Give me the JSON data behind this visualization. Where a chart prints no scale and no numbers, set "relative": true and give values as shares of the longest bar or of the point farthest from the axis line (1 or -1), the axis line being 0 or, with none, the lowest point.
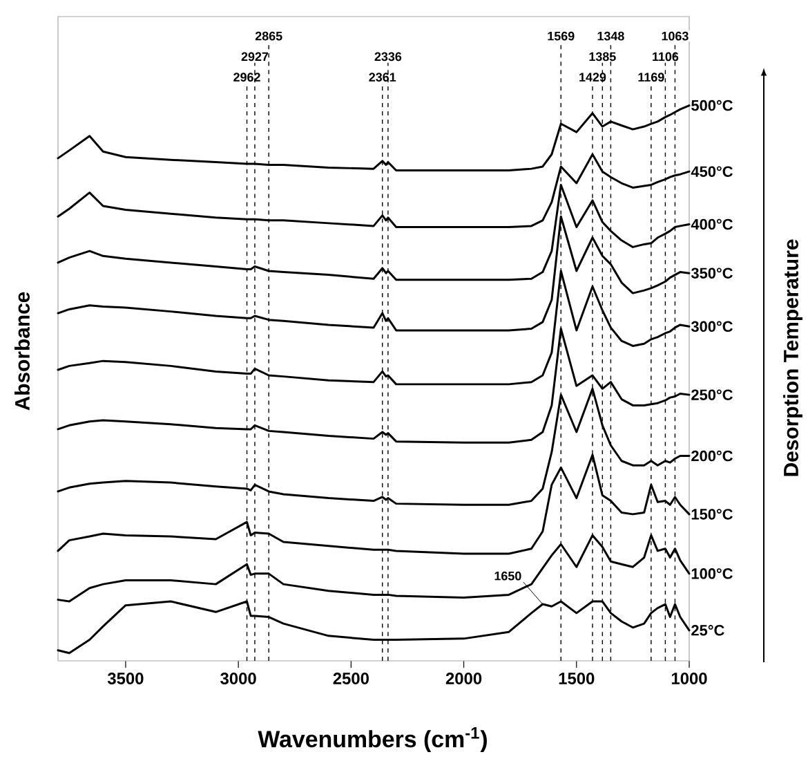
{
  "chart_data": {
    "type": "line",
    "relative": true,
    "xlabel": "Wavenumbers (cm$^{-1}$)",
    "ylabel": "Absorbance",
    "y2label": "Desorption Temperature",
    "xlim": [
      3800,
      1000
    ],
    "xticks": [
      3500,
      3000,
      2500,
      2000,
      1500,
      1000
    ],
    "x": [
      3800,
      3750,
      3660,
      3600,
      3500,
      3300,
      3100,
      2962,
      2945,
      2927,
      2865,
      2800,
      2600,
      2400,
      2361,
      2345,
      2336,
      2300,
      2000,
      1800,
      1700,
      1650,
      1610,
      1569,
      1500,
      1429,
      1385,
      1348,
      1300,
      1250,
      1200,
      1169,
      1140,
      1106,
      1085,
      1063,
      1040,
      1000
    ],
    "series": [
      {
        "name": "500°C",
        "color": "#000000",
        "values": [
          0.905,
          0.919,
          0.945,
          0.917,
          0.907,
          0.902,
          0.898,
          0.895,
          0.895,
          0.895,
          0.893,
          0.893,
          0.888,
          0.886,
          0.9,
          0.893,
          0.898,
          0.883,
          0.883,
          0.883,
          0.886,
          0.89,
          0.912,
          0.967,
          0.952,
          0.986,
          0.962,
          0.971,
          0.964,
          0.957,
          0.962,
          0.967,
          0.971,
          0.979,
          0.983,
          0.988,
          0.993,
          1
        ]
      },
      {
        "name": "450°C",
        "color": "#000000",
        "values": [
          0.8,
          0.814,
          0.843,
          0.819,
          0.812,
          0.805,
          0.798,
          0.795,
          0.795,
          0.795,
          0.793,
          0.793,
          0.788,
          0.783,
          0.802,
          0.793,
          0.798,
          0.781,
          0.781,
          0.781,
          0.783,
          0.793,
          0.826,
          0.89,
          0.86,
          0.912,
          0.881,
          0.871,
          0.86,
          0.852,
          0.855,
          0.857,
          0.862,
          0.867,
          0.871,
          0.874,
          0.876,
          0.881
        ]
      },
      {
        "name": "400°C",
        "color": "#000000",
        "values": [
          0.717,
          0.726,
          0.738,
          0.729,
          0.724,
          0.717,
          0.71,
          0.705,
          0.705,
          0.71,
          0.702,
          0.7,
          0.695,
          0.688,
          0.707,
          0.698,
          0.702,
          0.686,
          0.686,
          0.686,
          0.688,
          0.7,
          0.738,
          0.857,
          0.781,
          0.829,
          0.79,
          0.774,
          0.757,
          0.745,
          0.75,
          0.752,
          0.762,
          0.769,
          0.774,
          0.781,
          0.783,
          0.786
        ]
      },
      {
        "name": "350°C",
        "color": "#000000",
        "values": [
          0.626,
          0.633,
          0.64,
          0.638,
          0.636,
          0.629,
          0.621,
          0.617,
          0.617,
          0.621,
          0.614,
          0.612,
          0.605,
          0.6,
          0.626,
          0.612,
          0.617,
          0.595,
          0.595,
          0.595,
          0.598,
          0.61,
          0.65,
          0.8,
          0.702,
          0.762,
          0.729,
          0.714,
          0.681,
          0.662,
          0.667,
          0.671,
          0.676,
          0.683,
          0.69,
          0.695,
          0.7,
          0.698
        ]
      },
      {
        "name": "300°C",
        "color": "#000000",
        "values": [
          0.524,
          0.531,
          0.536,
          0.54,
          0.538,
          0.531,
          0.521,
          0.517,
          0.517,
          0.526,
          0.514,
          0.512,
          0.505,
          0.502,
          0.521,
          0.512,
          0.514,
          0.498,
          0.498,
          0.498,
          0.502,
          0.514,
          0.555,
          0.702,
          0.595,
          0.674,
          0.631,
          0.6,
          0.576,
          0.567,
          0.571,
          0.579,
          0.583,
          0.59,
          0.593,
          0.6,
          0.605,
          0.602
        ]
      },
      {
        "name": "250°C",
        "color": "#000000",
        "values": [
          0.417,
          0.424,
          0.431,
          0.433,
          0.431,
          0.426,
          0.419,
          0.417,
          0.417,
          0.424,
          0.414,
          0.412,
          0.405,
          0.4,
          0.412,
          0.407,
          0.41,
          0.395,
          0.393,
          0.393,
          0.398,
          0.412,
          0.46,
          0.598,
          0.495,
          0.514,
          0.49,
          0.502,
          0.471,
          0.46,
          0.46,
          0.462,
          0.464,
          0.469,
          0.474,
          0.476,
          0.481,
          0.479
        ]
      },
      {
        "name": "200°C",
        "color": "#000000",
        "values": [
          0.305,
          0.312,
          0.319,
          0.321,
          0.324,
          0.321,
          0.314,
          0.31,
          0.307,
          0.317,
          0.305,
          0.3,
          0.293,
          0.288,
          0.295,
          0.29,
          0.293,
          0.283,
          0.281,
          0.281,
          0.288,
          0.31,
          0.376,
          0.479,
          0.412,
          0.49,
          0.424,
          0.388,
          0.36,
          0.352,
          0.352,
          0.36,
          0.352,
          0.36,
          0.357,
          0.364,
          0.369,
          0.369
        ]
      },
      {
        "name": "150°C",
        "color": "#000000",
        "values": [
          0.198,
          0.217,
          0.224,
          0.229,
          0.226,
          0.224,
          0.219,
          0.25,
          0.226,
          0.231,
          0.229,
          0.214,
          0.207,
          0.2,
          0.2,
          0.2,
          0.2,
          0.198,
          0.193,
          0.193,
          0.202,
          0.233,
          0.317,
          0.348,
          0.293,
          0.371,
          0.298,
          0.288,
          0.267,
          0.264,
          0.267,
          0.317,
          0.286,
          0.288,
          0.281,
          0.295,
          0.281,
          0.264
        ]
      },
      {
        "name": "100°C",
        "color": "#000000",
        "values": [
          0.11,
          0.107,
          0.131,
          0.138,
          0.145,
          0.145,
          0.138,
          0.174,
          0.155,
          0.157,
          0.157,
          0.138,
          0.126,
          0.119,
          0.119,
          0.119,
          0.119,
          0.117,
          0.114,
          0.119,
          0.138,
          0.167,
          0.19,
          0.21,
          0.169,
          0.226,
          0.205,
          0.179,
          0.174,
          0.169,
          0.186,
          0.226,
          0.198,
          0.202,
          0.186,
          0.202,
          0.181,
          0.157
        ]
      },
      {
        "name": "25°C",
        "color": "#000000",
        "values": [
          0.019,
          0.014,
          0.038,
          0.062,
          0.1,
          0.107,
          0.088,
          0.107,
          0.081,
          0.081,
          0.079,
          0.067,
          0.045,
          0.038,
          0.038,
          0.038,
          0.038,
          0.038,
          0.04,
          0.052,
          0.086,
          0.102,
          0.098,
          0.107,
          0.086,
          0.107,
          0.107,
          0.086,
          0.071,
          0.06,
          0.067,
          0.086,
          0.095,
          0.102,
          0.079,
          0.102,
          0.079,
          0.055
        ]
      }
    ],
    "ref_lines": [
      {
        "axis": "x",
        "value": 2962,
        "label": "2962",
        "line_style": "dashed"
      },
      {
        "axis": "x",
        "value": 2927,
        "label": "2927",
        "line_style": "dashed"
      },
      {
        "axis": "x",
        "value": 2865,
        "label": "2865",
        "line_style": "dashed"
      },
      {
        "axis": "x",
        "value": 2361,
        "label": "2361",
        "line_style": "dashed"
      },
      {
        "axis": "x",
        "value": 2336,
        "label": "2336",
        "line_style": "dashed"
      },
      {
        "axis": "x",
        "value": 1569,
        "label": "1569",
        "line_style": "dashed"
      },
      {
        "axis": "x",
        "value": 1429,
        "label": "1429",
        "line_style": "dashed"
      },
      {
        "axis": "x",
        "value": 1385,
        "label": "1385",
        "line_style": "dashed"
      },
      {
        "axis": "x",
        "value": 1348,
        "label": "1348",
        "line_style": "dashed"
      },
      {
        "axis": "x",
        "value": 1169,
        "label": "1169",
        "line_style": "dashed"
      },
      {
        "axis": "x",
        "value": 1106,
        "label": "1106",
        "line_style": "dashed"
      },
      {
        "axis": "x",
        "value": 1063,
        "label": "1063",
        "line_style": "dashed"
      }
    ],
    "annotations": [
      {
        "text": "1650",
        "x": 1650,
        "y": 0.102
      }
    ]
  }
}
